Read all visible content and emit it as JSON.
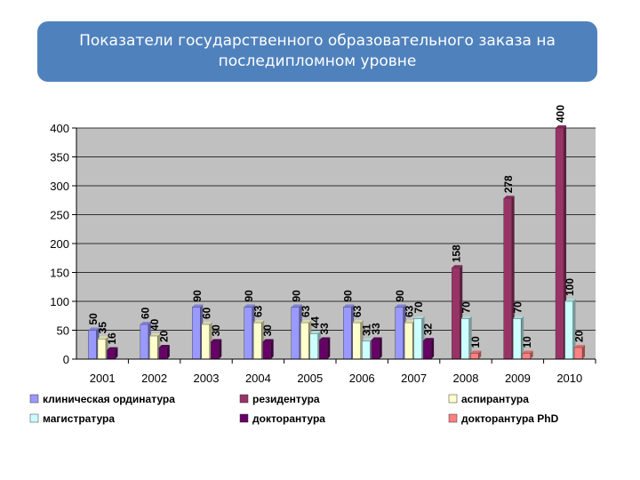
{
  "title": "Показатели государственного образовательного заказа на последипломном уровне",
  "colors": {
    "plot_bg": "#c0c0c0",
    "grid": "#000000"
  },
  "chart_data": {
    "type": "bar",
    "title": "Показатели государственного образовательного заказа на последипломном уровне",
    "categories": [
      "2001",
      "2002",
      "2003",
      "2004",
      "2005",
      "2006",
      "2007",
      "2008",
      "2009",
      "2010"
    ],
    "ylim": [
      0,
      400
    ],
    "yticks": [
      0,
      50,
      100,
      150,
      200,
      250,
      300,
      350,
      400
    ],
    "grid": true,
    "legend_position": "bottom",
    "series": [
      {
        "name": "клиническая ординатура",
        "color": "#9999ff",
        "values": [
          50,
          60,
          90,
          90,
          90,
          90,
          90,
          null,
          null,
          null
        ]
      },
      {
        "name": "резидентура",
        "color": "#993366",
        "values": [
          null,
          null,
          null,
          null,
          null,
          null,
          null,
          158,
          278,
          400
        ]
      },
      {
        "name": "аспирантура",
        "color": "#ffffcc",
        "values": [
          35,
          40,
          60,
          63,
          63,
          63,
          63,
          null,
          null,
          null
        ]
      },
      {
        "name": "магистратура",
        "color": "#ccffff",
        "values": [
          null,
          null,
          null,
          null,
          44,
          31,
          70,
          70,
          70,
          100
        ]
      },
      {
        "name": "докторантура",
        "color": "#660066",
        "values": [
          16,
          20,
          30,
          30,
          33,
          33,
          32,
          null,
          null,
          null
        ]
      },
      {
        "name": "докторантура PhD",
        "color": "#ff8080",
        "values": [
          null,
          null,
          null,
          null,
          null,
          null,
          null,
          10,
          10,
          20
        ]
      }
    ]
  }
}
